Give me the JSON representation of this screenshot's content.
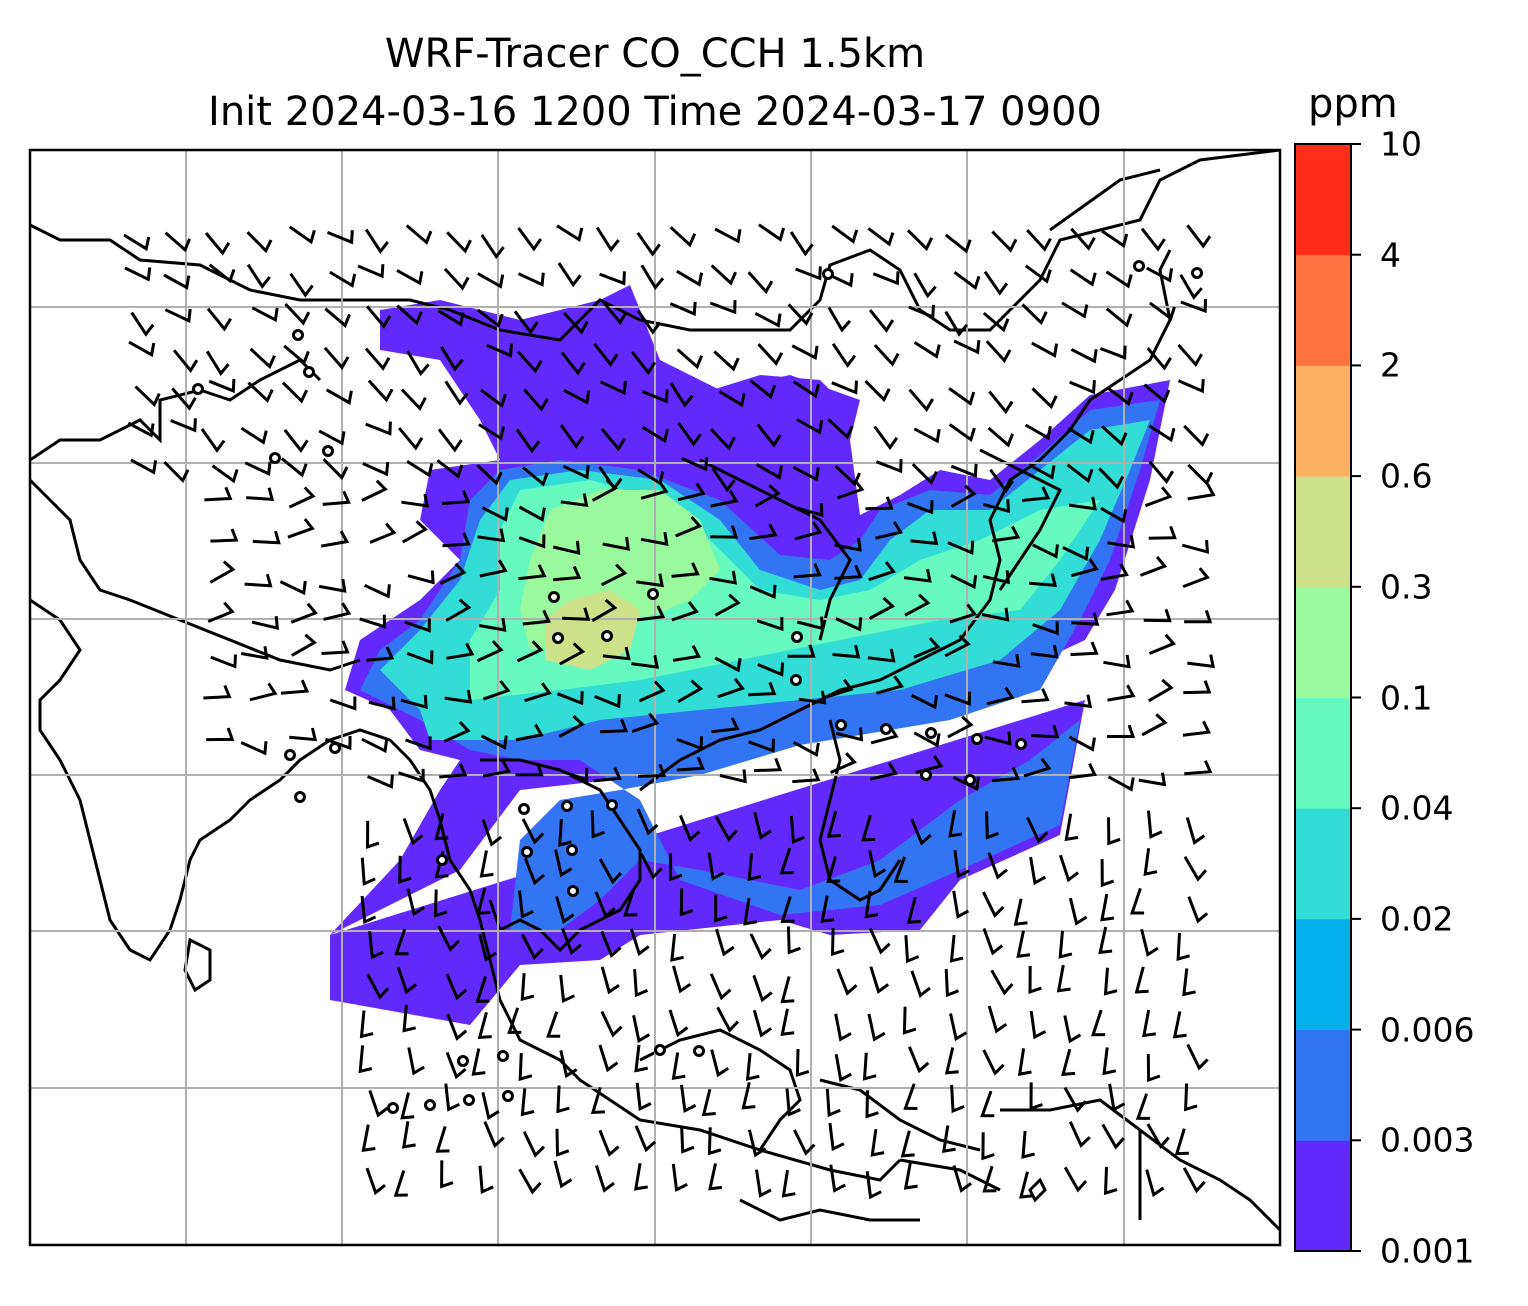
{
  "title_line1": "WRF-Tracer CO_CCH 1.5km",
  "title_line2": "Init 2024-03-16 1200 Time 2024-03-17 0900",
  "colorbar": {
    "unit": "ppm",
    "levels": [
      "0.001",
      "0.003",
      "0.006",
      "0.02",
      "0.04",
      "0.1",
      "0.3",
      "0.6",
      "2",
      "4",
      "10"
    ],
    "colors": [
      "#6329fb",
      "#3374f2",
      "#03b0e9",
      "#32ddd5",
      "#66fac0",
      "#9af99d",
      "#cde18a",
      "#fdb062",
      "#ff733e",
      "#ff2d18"
    ]
  },
  "markers": {
    "wind_barbs": "black",
    "station_circles": "black"
  }
}
